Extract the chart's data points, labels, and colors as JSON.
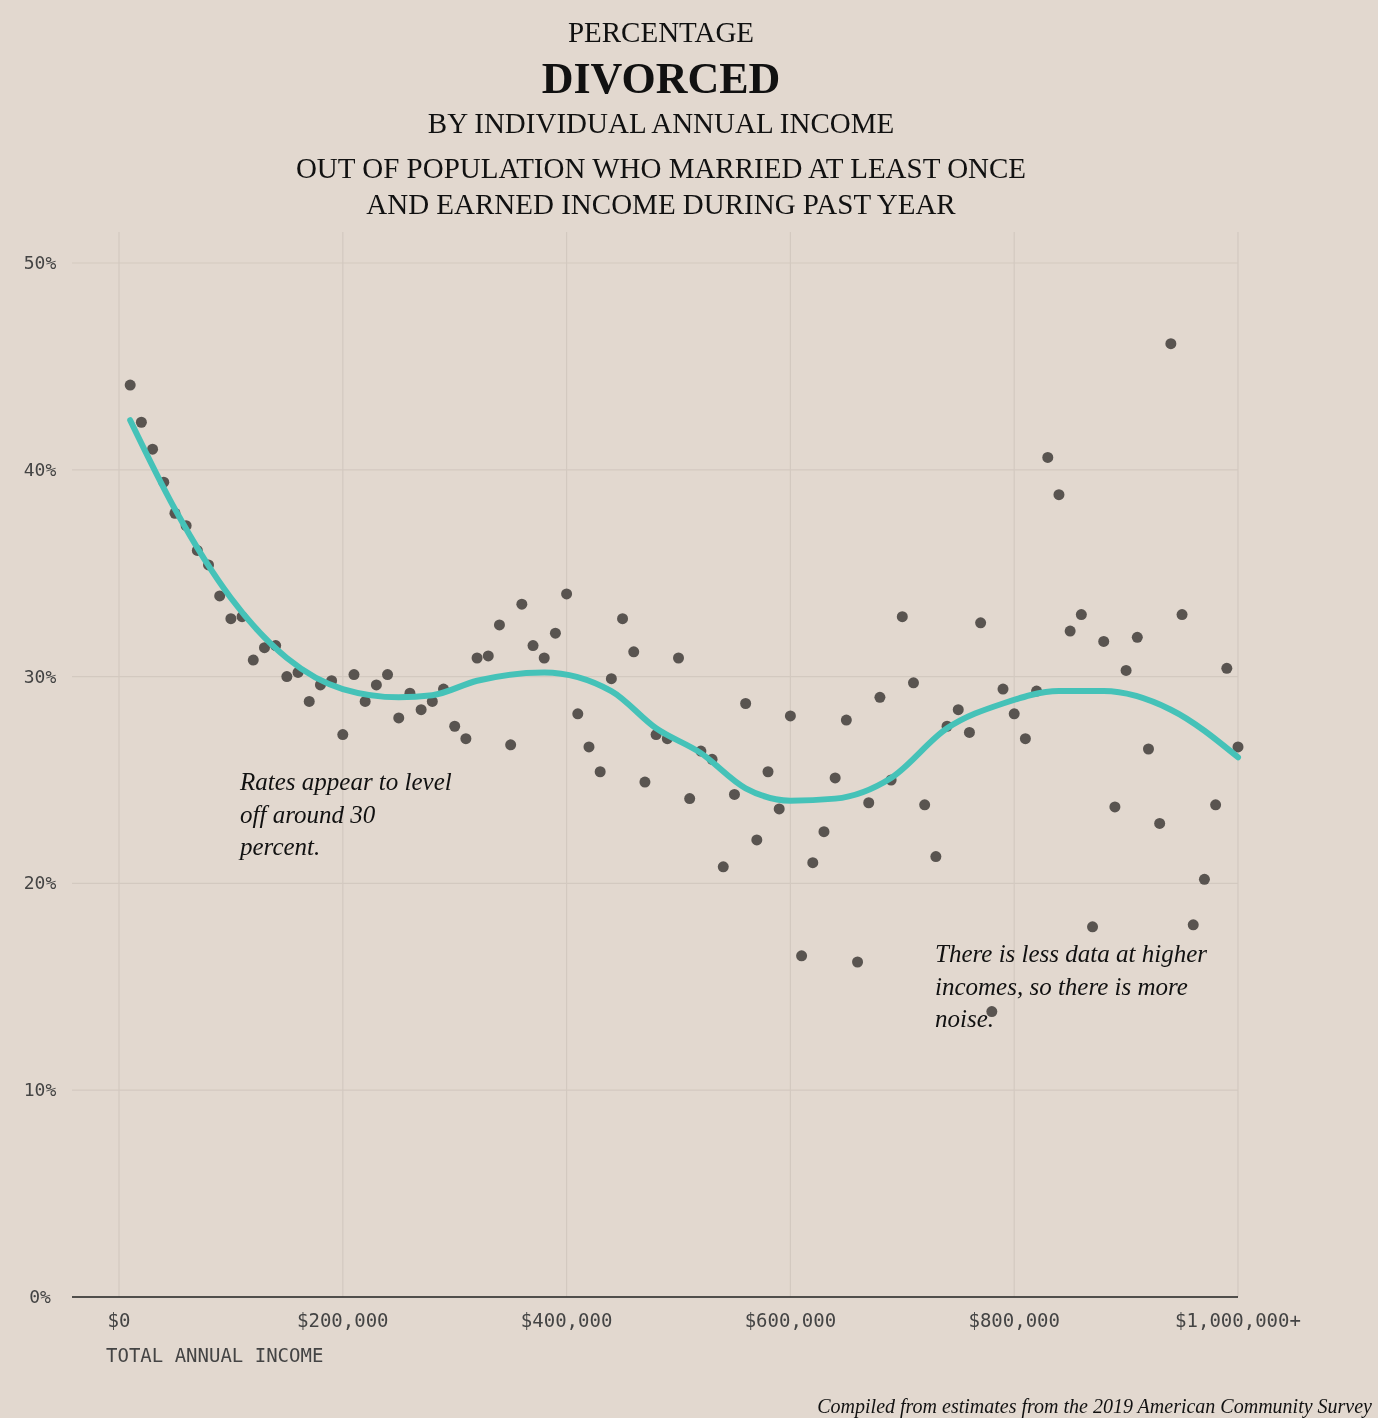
{
  "chart_data": {
    "type": "scatter",
    "title": "PERCENTAGE\nDIVORCED\nBY INDIVIDUAL ANNUAL INCOME",
    "subtitle": "OUT OF POPULATION WHO MARRIED AT LEAST ONCE\nAND EARNED INCOME DURING PAST YEAR",
    "xlabel": "TOTAL ANNUAL INCOME",
    "annotations": [
      "Rates appear to level\noff around 30\npercent.",
      "There is less data at higher\nincomes, so there is more\nnoise.",
      "Compiled from estimates from the 2019 American Community Survey"
    ],
    "xlim": [
      -42000,
      1000000
    ],
    "xticks": [
      {
        "value": 0,
        "label": "$0"
      },
      {
        "value": 200000,
        "label": "$200,000"
      },
      {
        "value": 400000,
        "label": "$400,000"
      },
      {
        "value": 600000,
        "label": "$600,000"
      },
      {
        "value": 800000,
        "label": "$800,000"
      },
      {
        "value": 1000000,
        "label": "$1,000,000+"
      }
    ],
    "ylim": [
      0,
      51.5
    ],
    "yticks": [
      {
        "value": 0,
        "label": "0%"
      },
      {
        "value": 10,
        "label": "10%"
      },
      {
        "value": 20,
        "label": "20%"
      },
      {
        "value": 30,
        "label": "30%"
      },
      {
        "value": 40,
        "label": "40%"
      },
      {
        "value": 50,
        "label": "50%"
      }
    ],
    "grid": true,
    "marker": "circle",
    "series": [
      {
        "color": "#595450",
        "x": [
          10000,
          20000,
          30000,
          40000,
          50000,
          60000,
          70000,
          80000,
          90000,
          100000,
          110000,
          120000,
          130000,
          140000,
          150000,
          160000,
          170000,
          180000,
          190000,
          200000,
          210000,
          220000,
          230000,
          240000,
          250000,
          260000,
          270000,
          280000,
          290000,
          300000,
          310000,
          320000,
          330000,
          340000,
          350000,
          360000,
          370000,
          380000,
          390000,
          400000,
          410000,
          420000,
          430000,
          440000,
          450000,
          460000,
          470000,
          480000,
          490000,
          500000,
          510000,
          520000,
          530000,
          540000,
          550000,
          560000,
          570000,
          580000,
          590000,
          600000,
          610000,
          620000,
          630000,
          640000,
          650000,
          660000,
          670000,
          680000,
          690000,
          700000,
          710000,
          720000,
          730000,
          740000,
          750000,
          760000,
          770000,
          780000,
          790000,
          800000,
          810000,
          820000,
          830000,
          840000,
          850000,
          860000,
          870000,
          880000,
          890000,
          900000,
          910000,
          920000,
          930000,
          940000,
          950000,
          960000,
          970000,
          980000,
          990000,
          1000000
        ],
        "values": [
          44.1,
          42.3,
          41.0,
          39.4,
          37.9,
          37.3,
          36.1,
          35.4,
          33.9,
          32.8,
          32.9,
          30.8,
          31.4,
          31.5,
          30.0,
          30.2,
          28.8,
          29.6,
          29.8,
          27.2,
          30.1,
          28.8,
          29.6,
          30.1,
          28.0,
          29.2,
          28.4,
          28.8,
          29.4,
          27.6,
          27.0,
          30.9,
          31.0,
          32.5,
          26.7,
          33.5,
          31.5,
          30.9,
          32.1,
          34.0,
          28.2,
          26.6,
          25.4,
          29.9,
          32.8,
          31.2,
          24.9,
          27.2,
          27.0,
          30.9,
          24.1,
          26.4,
          26.0,
          20.8,
          24.3,
          28.7,
          22.1,
          25.4,
          23.6,
          28.1,
          16.5,
          21.0,
          22.5,
          25.1,
          27.9,
          16.2,
          23.9,
          29.0,
          25.0,
          32.9,
          29.7,
          23.8,
          21.3,
          27.6,
          28.4,
          27.3,
          32.6,
          13.8,
          29.4,
          28.2,
          27.0,
          29.3,
          40.6,
          38.8,
          32.2,
          33.0,
          17.9,
          31.7,
          23.7,
          30.3,
          31.9,
          26.5,
          22.9,
          46.1,
          33.0,
          18.0,
          20.2,
          23.8,
          30.4,
          26.6
        ]
      },
      {
        "type": "line",
        "color": "#45c2b8",
        "marker": "none",
        "line_style": "solid",
        "x": [
          10000,
          50000,
          100000,
          150000,
          200000,
          250000,
          280000,
          320000,
          380000,
          440000,
          480000,
          520000,
          560000,
          600000,
          640000,
          690000,
          740000,
          790000,
          840000,
          880000,
          940000,
          1000000
        ],
        "values": [
          42.4,
          38.1,
          33.8,
          30.9,
          29.4,
          29.0,
          29.1,
          29.8,
          30.2,
          29.3,
          27.5,
          26.3,
          24.6,
          24.0,
          24.1,
          25.1,
          27.5,
          28.7,
          29.3,
          29.3,
          28.4,
          26.1
        ]
      }
    ]
  }
}
